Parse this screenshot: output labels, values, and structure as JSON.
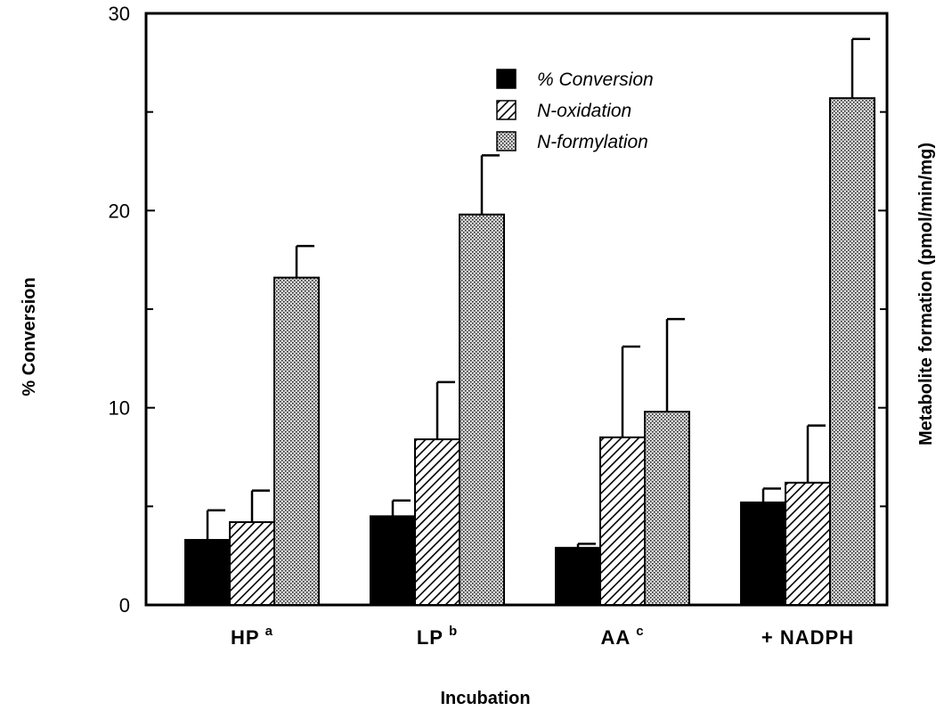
{
  "chart_data": {
    "type": "bar",
    "title": "",
    "xlabel": "Incubation",
    "ylabel": "% Conversion",
    "y2label": "Metabolite formation (pmol/min/mg)",
    "ylim": [
      0,
      30
    ],
    "yticks": [
      "0",
      "10",
      "20",
      "30"
    ],
    "categories": [
      {
        "main": "HP",
        "sup": "a"
      },
      {
        "main": "LP",
        "sup": "b"
      },
      {
        "main": "AA",
        "sup": "c"
      },
      {
        "main": "+ NADPH",
        "sup": ""
      }
    ],
    "legend_position": "top-center",
    "series": [
      {
        "name": "% Conversion",
        "pattern": "solid",
        "values": [
          3.3,
          4.5,
          2.9,
          5.2
        ],
        "errors": [
          1.5,
          0.8,
          0.2,
          0.7
        ]
      },
      {
        "name": "N-oxidation",
        "pattern": "hatch",
        "values": [
          4.2,
          8.4,
          8.5,
          6.2
        ],
        "errors": [
          1.6,
          2.9,
          4.6,
          2.9
        ]
      },
      {
        "name": "N-formylation",
        "pattern": "stipple",
        "values": [
          16.6,
          19.8,
          9.8,
          25.7
        ],
        "errors": [
          1.6,
          3.0,
          4.7,
          3.0
        ]
      }
    ]
  }
}
